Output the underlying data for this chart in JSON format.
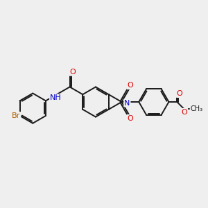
{
  "bg_color": "#efefef",
  "bond_color": "#1a1a1a",
  "bond_width": 1.4,
  "atom_colors": {
    "Br": "#b06000",
    "O": "#dd0000",
    "N": "#0000cc",
    "C": "#1a1a1a"
  },
  "font_size": 8.0,
  "fs_small": 7.0
}
